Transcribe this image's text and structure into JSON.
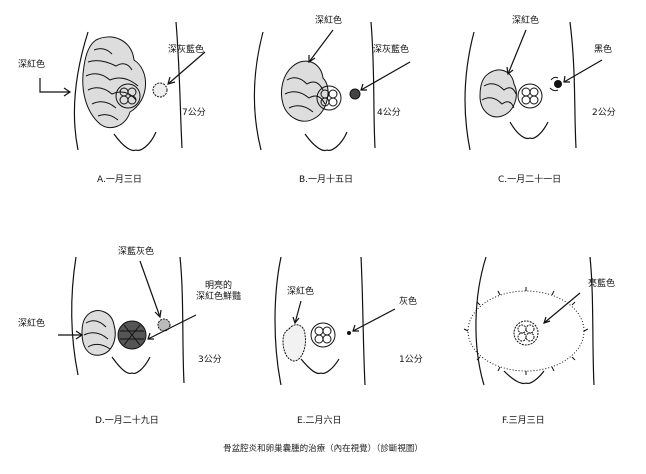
{
  "panels": [
    {
      "caption": "A.一月三日",
      "distance": "7公分",
      "labels": [
        "深紅色",
        "深灰藍色"
      ]
    },
    {
      "caption": "B.一月十五日",
      "distance": "4公分",
      "labels": [
        "深紅色",
        "深灰藍色"
      ]
    },
    {
      "caption": "C.一月二十一日",
      "distance": "2公分",
      "labels": [
        "深紅色",
        "黑色"
      ]
    },
    {
      "caption": "D.一月二十九日",
      "distance": "3公分",
      "labels": [
        "深紅色",
        "深藍灰色",
        "明亮的\n深紅色鮮豔"
      ]
    },
    {
      "caption": "E.二月六日",
      "distance": "1公分",
      "labels": [
        "深紅色",
        "灰色"
      ]
    },
    {
      "caption": "F.三月三日",
      "distance": "",
      "labels": [
        "亮藍色"
      ]
    }
  ],
  "footer": "骨盆腔炎和卵巢囊腫的治療（內在視覺）（診斷視圖）"
}
